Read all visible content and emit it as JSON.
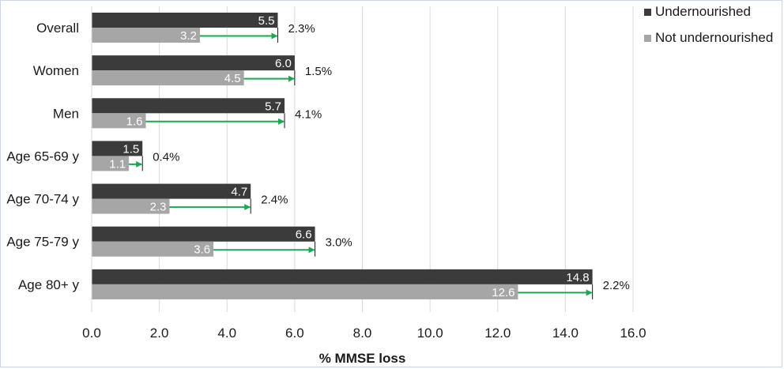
{
  "chart_data": {
    "type": "bar",
    "orientation": "horizontal",
    "categories": [
      "Overall",
      "Women",
      "Men",
      "Age 65-69 y",
      "Age 70-74 y",
      "Age 75-79 y",
      "Age 80+ y"
    ],
    "series": [
      {
        "name": "Undernourished",
        "values": [
          5.5,
          6.0,
          5.7,
          1.5,
          4.7,
          6.6,
          14.8
        ],
        "labels": [
          "5.5",
          "6.0",
          "5.7",
          "1.5",
          "4.7",
          "6.6",
          "14.8"
        ],
        "color": "#3b3b3b"
      },
      {
        "name": "Not undernourished",
        "values": [
          3.2,
          4.5,
          1.6,
          1.1,
          2.3,
          3.6,
          12.6
        ],
        "labels": [
          "3.2",
          "4.5",
          "1.6",
          "1.1",
          "2.3",
          "3.6",
          "12.6"
        ],
        "color": "#a6a6a6"
      }
    ],
    "difference_labels": [
      "2.3%",
      "1.5%",
      "4.1%",
      "0.4%",
      "2.4%",
      "3.0%",
      "2.2%"
    ],
    "arrow_color": "#1aa850",
    "xlabel": "% MMSE loss",
    "xlim": [
      0,
      16
    ],
    "xticks": [
      "0.0",
      "2.0",
      "4.0",
      "6.0",
      "8.0",
      "10.0",
      "12.0",
      "14.0",
      "16.0"
    ],
    "grid": true,
    "legend_position": "top-right"
  }
}
